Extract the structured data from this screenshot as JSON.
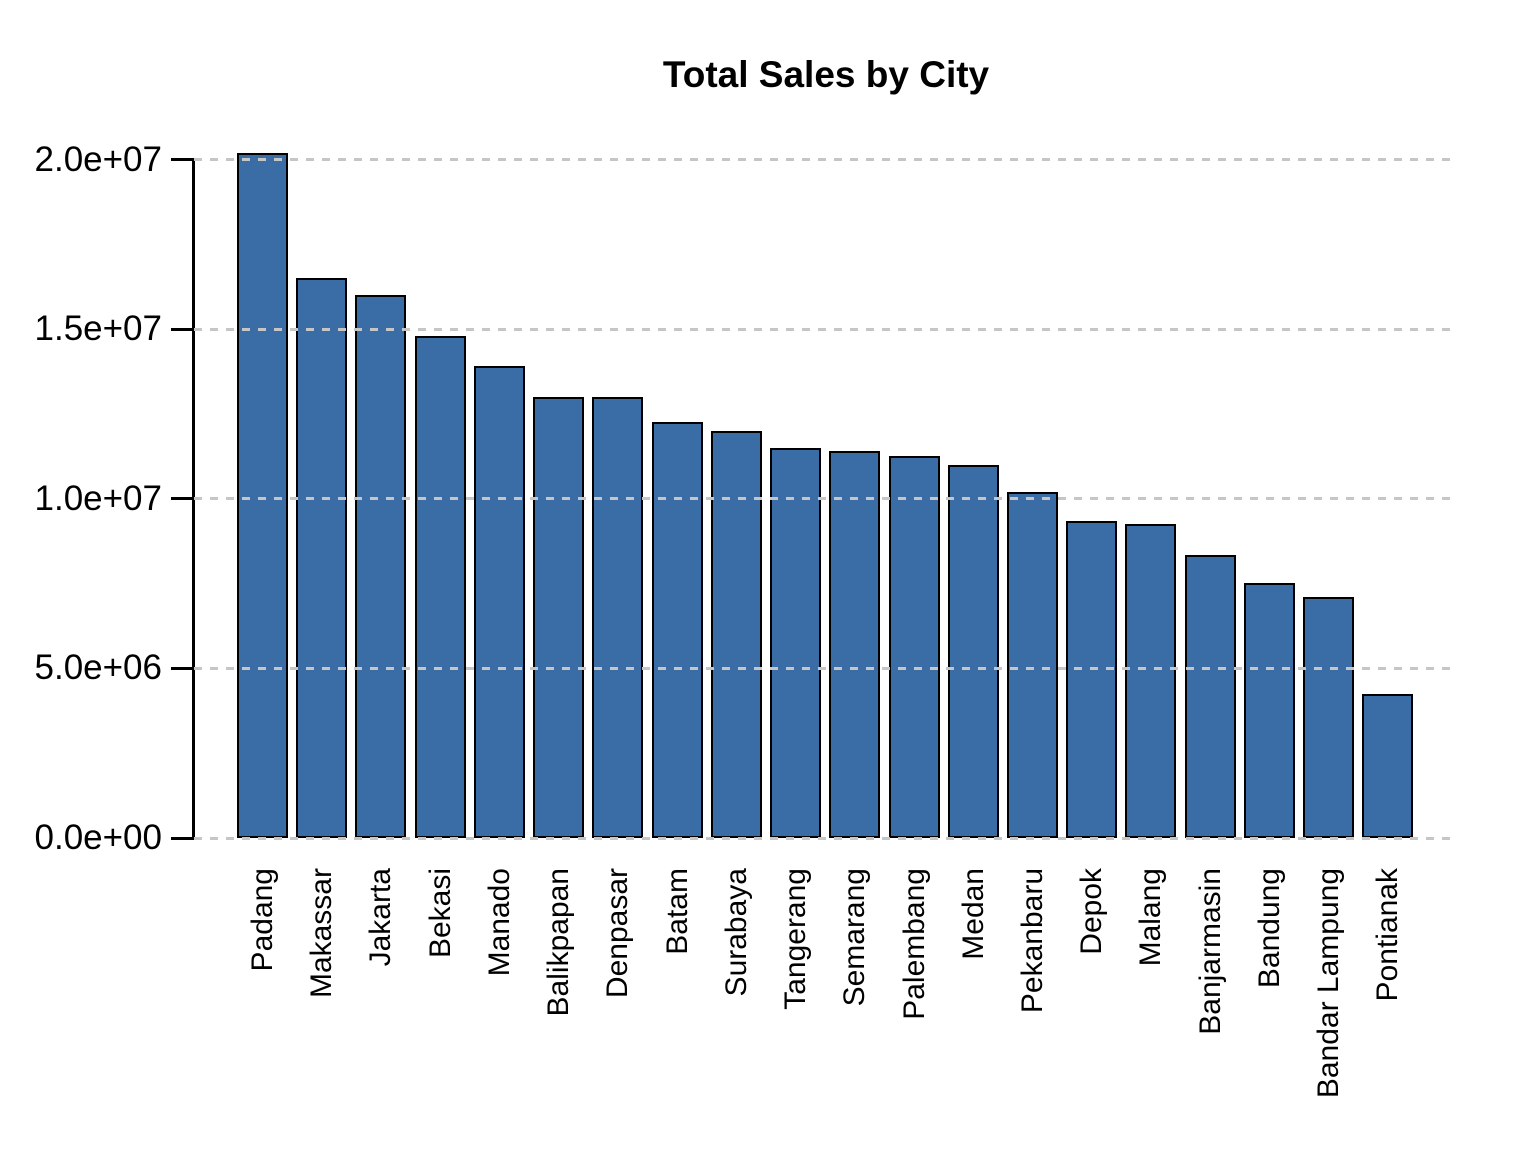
{
  "title": "Total Sales by City",
  "chart_data": {
    "type": "bar",
    "title": "Total Sales by City",
    "xlabel": "",
    "ylabel": "",
    "categories": [
      "Padang",
      "Makassar",
      "Jakarta",
      "Bekasi",
      "Manado",
      "Balikpapan",
      "Denpasar",
      "Batam",
      "Surabaya",
      "Tangerang",
      "Semarang",
      "Palembang",
      "Medan",
      "Pekanbaru",
      "Depok",
      "Malang",
      "Banjarmasin",
      "Bandung",
      "Bandar Lampung",
      "Pontianak"
    ],
    "values": [
      20200000,
      16500000,
      16000000,
      14800000,
      13900000,
      13000000,
      13000000,
      12250000,
      12000000,
      11500000,
      11400000,
      11250000,
      11000000,
      10200000,
      9350000,
      9250000,
      8350000,
      7530000,
      7100000,
      4250000
    ],
    "ylim": [
      0,
      20000000
    ],
    "yticks": {
      "values": [
        0,
        5000000,
        10000000,
        15000000,
        20000000
      ],
      "labels": [
        "0.0e+00",
        "5.0e+06",
        "1.0e+07",
        "1.5e+07",
        "2.0e+07"
      ]
    },
    "grid": "horizontal-dashed",
    "legend": "none",
    "colors": {
      "bar_fill": "#3A6CA6",
      "bar_border": "#000000",
      "grid_color": "#C6C6C6",
      "axis_color": "#000000",
      "background": "#FFFFFF",
      "text": "#000000"
    }
  }
}
